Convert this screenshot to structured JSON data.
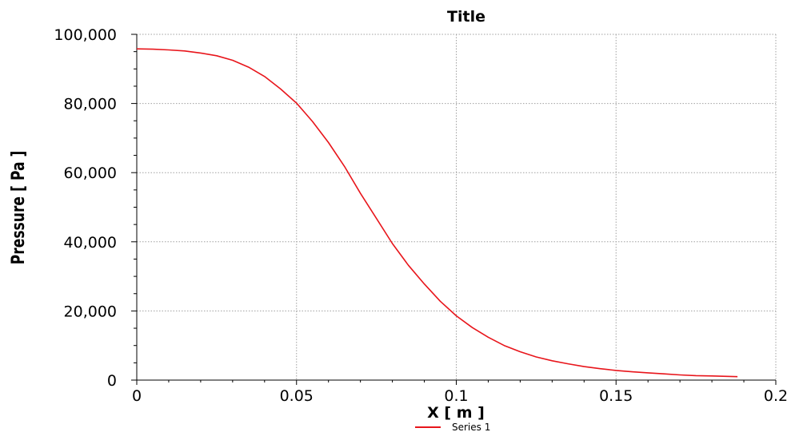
{
  "chart_data": {
    "type": "line",
    "title": "Title",
    "xlabel": "X [ m ]",
    "ylabel": "Pressure [ Pa ]",
    "xlim": [
      0,
      0.2
    ],
    "ylim": [
      0,
      100000
    ],
    "x_ticks": [
      {
        "value": 0,
        "label": "0"
      },
      {
        "value": 0.05,
        "label": "0.05"
      },
      {
        "value": 0.1,
        "label": "0.1"
      },
      {
        "value": 0.15,
        "label": "0.15"
      },
      {
        "value": 0.2,
        "label": "0.2"
      }
    ],
    "y_ticks": [
      {
        "value": 0,
        "label": "0"
      },
      {
        "value": 20000,
        "label": "20,000"
      },
      {
        "value": 40000,
        "label": "40,000"
      },
      {
        "value": 60000,
        "label": "60,000"
      },
      {
        "value": 80000,
        "label": "80,000"
      },
      {
        "value": 100000,
        "label": "100,000"
      }
    ],
    "grid": true,
    "legend_position": "bottom-center",
    "colors": {
      "series": "#e8151b",
      "grid": "#a0a0a0",
      "axis": "#000000"
    },
    "series": [
      {
        "name": "Series 1",
        "x": [
          0,
          0.005,
          0.01,
          0.015,
          0.02,
          0.025,
          0.03,
          0.035,
          0.04,
          0.045,
          0.05,
          0.055,
          0.06,
          0.065,
          0.07,
          0.075,
          0.08,
          0.085,
          0.09,
          0.095,
          0.1,
          0.105,
          0.11,
          0.115,
          0.12,
          0.125,
          0.13,
          0.135,
          0.14,
          0.145,
          0.15,
          0.155,
          0.16,
          0.165,
          0.17,
          0.175,
          0.18,
          0.188
        ],
        "y": [
          95800,
          95700,
          95500,
          95200,
          94600,
          93800,
          92500,
          90500,
          87800,
          84200,
          80100,
          74800,
          68700,
          61800,
          54000,
          46800,
          39500,
          33200,
          27800,
          22800,
          18600,
          15200,
          12400,
          10000,
          8200,
          6700,
          5600,
          4700,
          3900,
          3300,
          2800,
          2400,
          2100,
          1800,
          1500,
          1300,
          1200,
          1000
        ]
      }
    ]
  }
}
